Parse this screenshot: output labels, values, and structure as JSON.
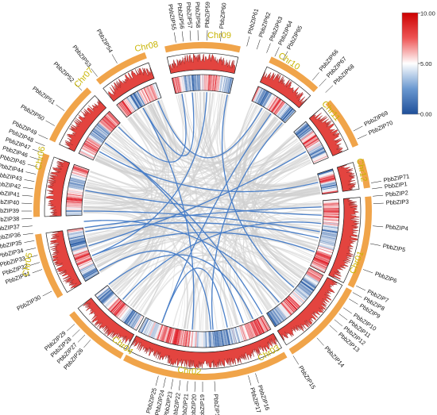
{
  "colors": {
    "chromosome": "#f0a44a",
    "chromosome_label": "#c8b400",
    "synteny_gray": "#d0d0d0",
    "synteny_blue": "#4a7fc8",
    "density_line": "#8b1a1a",
    "density_fill": "#e0302a",
    "heat_low": "#2c5fa8",
    "heat_mid": "#ffffff",
    "heat_high": "#e0202a",
    "track_border": "#222222"
  },
  "legend": {
    "max_label": "10.00",
    "mid_label": "5.00",
    "min_label": "0.00"
  },
  "chromosomes": [
    {
      "name": "Chr01"
    },
    {
      "name": "Chr02"
    },
    {
      "name": "Chr03"
    },
    {
      "name": "Chr04"
    },
    {
      "name": "Chr05"
    },
    {
      "name": "Chr06"
    },
    {
      "name": "Chr07"
    },
    {
      "name": "Chr08"
    },
    {
      "name": "Chr09"
    },
    {
      "name": "Chr10"
    },
    {
      "name": "Chr11"
    },
    {
      "name": "Chr12"
    }
  ],
  "genes": [
    "PbbZIP1",
    "PbbZIP2",
    "PbbZIP3",
    "PbbZIP4",
    "PbbZIP5",
    "PbbZIP6",
    "PbbZIP7",
    "PbbZIP8",
    "PbbZIP9",
    "PbbZIP10",
    "PbbZIP11",
    "PbbZIP12",
    "PbbZIP13",
    "PbbZIP14",
    "PbbZIP15",
    "PbbZIP16",
    "PbbZIP17",
    "PbbZIP18",
    "PbbZIP19",
    "PbbZIP20",
    "PbbZIP21",
    "PbbZIP22",
    "PbbZIP23",
    "PbbZIP24",
    "PbbZIP25",
    "PbbZIP26",
    "PbbZIP27",
    "PbbZIP28",
    "PbbZIP29",
    "PbbZIP30",
    "PbbZIP31",
    "PbbZIP32",
    "PbbZIP33",
    "PbbZIP34",
    "PbbZIP35",
    "PbbZIP36",
    "PbbZIP37",
    "PbbZIP38",
    "PbbZIP39",
    "PbbZIP40",
    "PbbZIP41",
    "PbbZIP42",
    "PbbZIP43",
    "PbbZIP44",
    "PbbZIP45",
    "PbbZIP46",
    "PbbZIP47",
    "PbbZIP48",
    "PbbZIP49",
    "PbbZIP50",
    "PbbZIP51",
    "PbbZIP52",
    "PbbZIP53",
    "PbbZIP54",
    "PbbZIP55",
    "PbbZIP56",
    "PbbZIP57",
    "PbbZIP58",
    "PbbZIP59",
    "PbbZIP60",
    "PbbZIP61",
    "PbbZIP62",
    "PbbZIP63",
    "PbbZIP64",
    "PbbZIP65",
    "PbbZIP66",
    "PbbZIP67",
    "PbbZIP68",
    "PbbZIP69",
    "PbbZIP70",
    "PbbZIP71"
  ]
}
